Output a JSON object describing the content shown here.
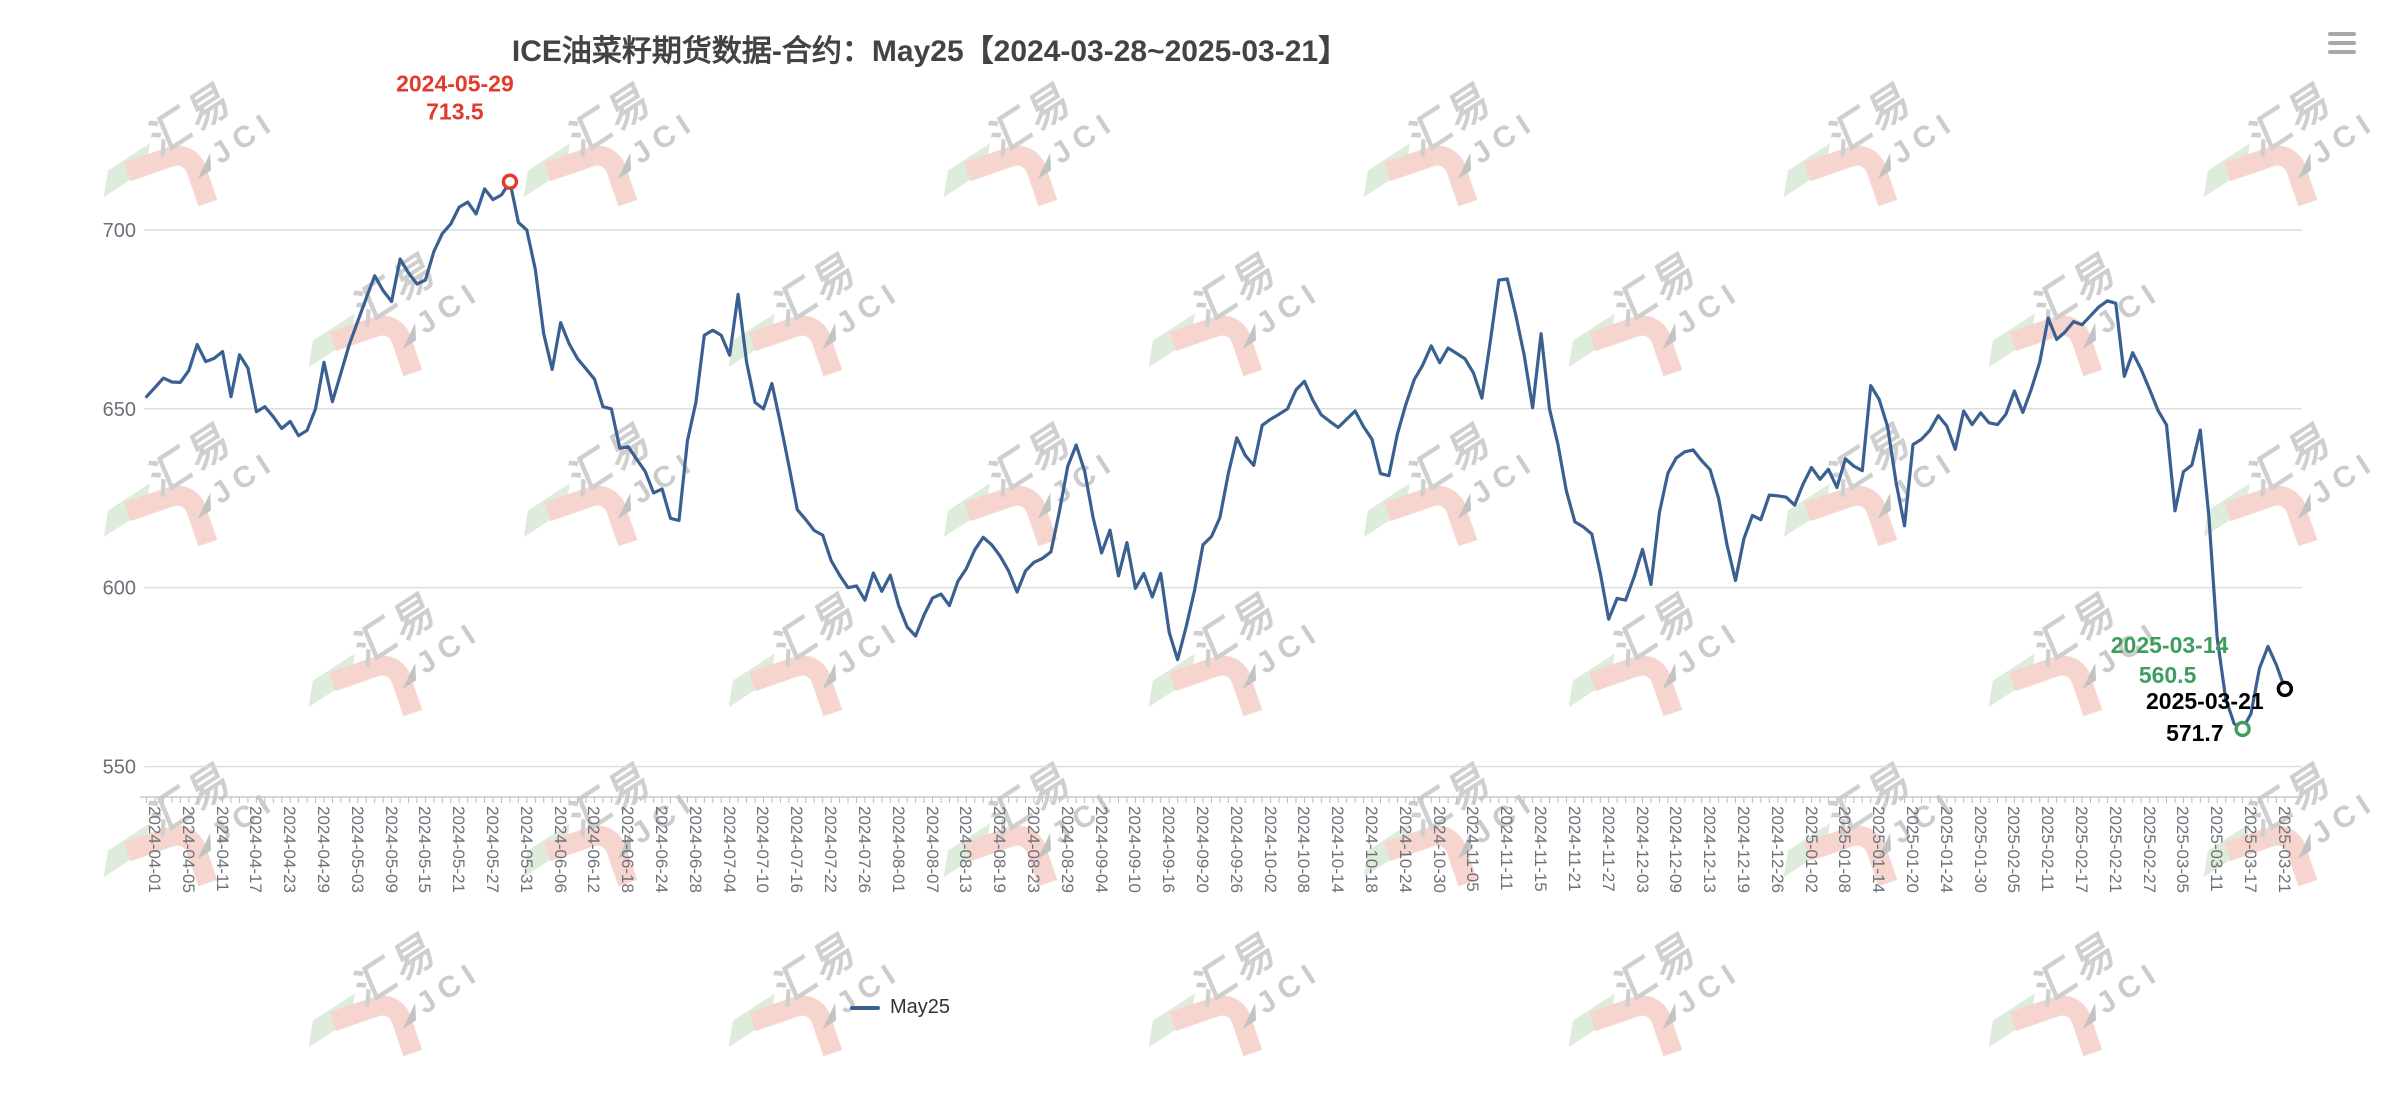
{
  "header": {
    "title": "ICE油菜籽期货数据-合约：May25【2024-03-28~2025-03-21】"
  },
  "toolbar": {
    "menu_icon": "hamburger-menu"
  },
  "legend": {
    "items": [
      {
        "label": "May25",
        "color": "#3a5f91"
      }
    ]
  },
  "watermark": {
    "text_cn": "汇易",
    "text_en": "JCI",
    "pink": "#f5cec7",
    "green": "#d9e9d5",
    "gray": "#c7c7c7"
  },
  "chart_data": {
    "type": "line",
    "title": "ICE油菜籽期货数据-合约：May25【2024-03-28~2025-03-21】",
    "xlabel": "",
    "ylabel": "",
    "ylim": [
      540,
      722
    ],
    "y_ticks": [
      550,
      600,
      650,
      700
    ],
    "grid": true,
    "legend_position": "bottom",
    "x_label_interval": 4,
    "x_label_start_index": 1,
    "line_color": "#3a5f91",
    "grid_color": "#dcdcdc",
    "axis_label_color": "#6e7079",
    "markers": [
      {
        "date": "2024-05-29",
        "value": 713.5,
        "color": "#e23a2b",
        "label_position": "above"
      },
      {
        "date": "2025-03-14",
        "value": 560.5,
        "color": "#3f9e5f",
        "label_position": "upper-left"
      },
      {
        "date": "2025-03-21",
        "value": 571.7,
        "color": "#000000",
        "label_position": "lower-left"
      }
    ],
    "series": [
      {
        "name": "May25",
        "color": "#3a5f91",
        "dates": [
          "2024-03-28",
          "2024-04-01",
          "2024-04-02",
          "2024-04-03",
          "2024-04-04",
          "2024-04-05",
          "2024-04-08",
          "2024-04-09",
          "2024-04-10",
          "2024-04-11",
          "2024-04-12",
          "2024-04-15",
          "2024-04-16",
          "2024-04-17",
          "2024-04-18",
          "2024-04-19",
          "2024-04-22",
          "2024-04-23",
          "2024-04-24",
          "2024-04-25",
          "2024-04-26",
          "2024-04-29",
          "2024-04-30",
          "2024-05-01",
          "2024-05-02",
          "2024-05-03",
          "2024-05-06",
          "2024-05-07",
          "2024-05-08",
          "2024-05-09",
          "2024-05-10",
          "2024-05-13",
          "2024-05-14",
          "2024-05-15",
          "2024-05-16",
          "2024-05-17",
          "2024-05-20",
          "2024-05-21",
          "2024-05-22",
          "2024-05-23",
          "2024-05-24",
          "2024-05-27",
          "2024-05-28",
          "2024-05-29",
          "2024-05-30",
          "2024-05-31",
          "2024-06-03",
          "2024-06-04",
          "2024-06-05",
          "2024-06-06",
          "2024-06-07",
          "2024-06-10",
          "2024-06-11",
          "2024-06-12",
          "2024-06-13",
          "2024-06-14",
          "2024-06-17",
          "2024-06-18",
          "2024-06-19",
          "2024-06-20",
          "2024-06-21",
          "2024-06-24",
          "2024-06-25",
          "2024-06-26",
          "2024-06-27",
          "2024-06-28",
          "2024-07-01",
          "2024-07-02",
          "2024-07-03",
          "2024-07-04",
          "2024-07-05",
          "2024-07-08",
          "2024-07-09",
          "2024-07-10",
          "2024-07-11",
          "2024-07-12",
          "2024-07-15",
          "2024-07-16",
          "2024-07-17",
          "2024-07-18",
          "2024-07-19",
          "2024-07-22",
          "2024-07-23",
          "2024-07-24",
          "2024-07-25",
          "2024-07-26",
          "2024-07-29",
          "2024-07-30",
          "2024-07-31",
          "2024-08-01",
          "2024-08-02",
          "2024-08-05",
          "2024-08-06",
          "2024-08-07",
          "2024-08-08",
          "2024-08-09",
          "2024-08-12",
          "2024-08-13",
          "2024-08-14",
          "2024-08-15",
          "2024-08-16",
          "2024-08-19",
          "2024-08-20",
          "2024-08-21",
          "2024-08-22",
          "2024-08-23",
          "2024-08-26",
          "2024-08-27",
          "2024-08-28",
          "2024-08-29",
          "2024-08-30",
          "2024-09-02",
          "2024-09-03",
          "2024-09-04",
          "2024-09-05",
          "2024-09-06",
          "2024-09-09",
          "2024-09-10",
          "2024-09-11",
          "2024-09-12",
          "2024-09-13",
          "2024-09-16",
          "2024-09-17",
          "2024-09-18",
          "2024-09-19",
          "2024-09-20",
          "2024-09-23",
          "2024-09-24",
          "2024-09-25",
          "2024-09-26",
          "2024-09-27",
          "2024-09-30",
          "2024-10-01",
          "2024-10-02",
          "2024-10-03",
          "2024-10-04",
          "2024-10-07",
          "2024-10-08",
          "2024-10-09",
          "2024-10-10",
          "2024-10-11",
          "2024-10-14",
          "2024-10-15",
          "2024-10-16",
          "2024-10-17",
          "2024-10-18",
          "2024-10-21",
          "2024-10-22",
          "2024-10-23",
          "2024-10-24",
          "2024-10-25",
          "2024-10-28",
          "2024-10-29",
          "2024-10-30",
          "2024-10-31",
          "2024-11-01",
          "2024-11-04",
          "2024-11-05",
          "2024-11-06",
          "2024-11-07",
          "2024-11-08",
          "2024-11-11",
          "2024-11-12",
          "2024-11-13",
          "2024-11-14",
          "2024-11-15",
          "2024-11-18",
          "2024-11-19",
          "2024-11-20",
          "2024-11-21",
          "2024-11-22",
          "2024-11-25",
          "2024-11-26",
          "2024-11-27",
          "2024-11-28",
          "2024-11-29",
          "2024-12-02",
          "2024-12-03",
          "2024-12-04",
          "2024-12-05",
          "2024-12-06",
          "2024-12-09",
          "2024-12-10",
          "2024-12-11",
          "2024-12-12",
          "2024-12-13",
          "2024-12-16",
          "2024-12-17",
          "2024-12-18",
          "2024-12-19",
          "2024-12-20",
          "2024-12-23",
          "2024-12-24",
          "2024-12-26",
          "2024-12-27",
          "2024-12-30",
          "2024-12-31",
          "2025-01-02",
          "2025-01-03",
          "2025-01-06",
          "2025-01-07",
          "2025-01-08",
          "2025-01-09",
          "2025-01-10",
          "2025-01-13",
          "2025-01-14",
          "2025-01-15",
          "2025-01-16",
          "2025-01-17",
          "2025-01-20",
          "2025-01-21",
          "2025-01-22",
          "2025-01-23",
          "2025-01-24",
          "2025-01-27",
          "2025-01-28",
          "2025-01-29",
          "2025-01-30",
          "2025-01-31",
          "2025-02-03",
          "2025-02-04",
          "2025-02-05",
          "2025-02-06",
          "2025-02-07",
          "2025-02-10",
          "2025-02-11",
          "2025-02-12",
          "2025-02-13",
          "2025-02-14",
          "2025-02-17",
          "2025-02-18",
          "2025-02-19",
          "2025-02-20",
          "2025-02-21",
          "2025-02-24",
          "2025-02-25",
          "2025-02-26",
          "2025-02-27",
          "2025-02-28",
          "2025-03-03",
          "2025-03-04",
          "2025-03-05",
          "2025-03-06",
          "2025-03-07",
          "2025-03-10",
          "2025-03-11",
          "2025-03-12",
          "2025-03-13",
          "2025-03-14",
          "2025-03-17",
          "2025-03-18",
          "2025-03-19",
          "2025-03-20",
          "2025-03-21"
        ],
        "values": [
          653.4,
          656,
          658.6,
          657.5,
          657.4,
          660.7,
          668,
          663.2,
          664.1,
          666,
          653.4,
          665.1,
          661.4,
          649.2,
          650.6,
          647.8,
          644.5,
          646.5,
          642.5,
          644,
          650,
          663,
          652,
          660,
          668,
          674.5,
          681,
          687.2,
          683,
          680,
          691.9,
          688,
          684.9,
          686,
          694,
          699,
          701.7,
          706.4,
          707.8,
          704.5,
          711.5,
          708.5,
          709.8,
          713.5,
          702.1,
          700,
          689,
          671,
          661,
          674.1,
          668.2,
          664,
          661.2,
          658.3,
          650.6,
          650,
          639,
          639.4,
          635.9,
          632.5,
          626.5,
          627.6,
          619.4,
          618.8,
          641,
          651.8,
          670.6,
          672,
          670.6,
          665,
          682,
          663,
          651.8,
          650,
          657.1,
          646,
          634.1,
          621.8,
          619,
          616,
          614.7,
          607.6,
          603.5,
          600,
          600.5,
          596.5,
          604.1,
          599,
          603.5,
          595,
          589,
          586.5,
          592.4,
          597.1,
          598.2,
          595,
          601.8,
          605.3,
          610.6,
          614.1,
          612,
          608.8,
          604.7,
          598.8,
          604.7,
          607.1,
          608.2,
          610,
          621.2,
          634,
          639.9,
          632.5,
          619.6,
          609.7,
          616.1,
          603.3,
          612.6,
          599.8,
          604,
          597.4,
          604,
          587.5,
          579.9,
          589,
          599.2,
          612,
          614.3,
          619.6,
          632,
          641.9,
          637,
          634.2,
          645.4,
          647.1,
          648.5,
          650,
          655.3,
          657.7,
          652.4,
          648.3,
          646.5,
          644.8,
          647.1,
          649.4,
          645,
          641.5,
          631.9,
          631.3,
          643,
          651.2,
          658.2,
          662.3,
          667.6,
          662.9,
          667,
          665.5,
          664,
          660,
          653,
          669,
          686,
          686.3,
          676.3,
          665,
          650.3,
          671,
          650,
          640,
          627,
          618.4,
          617,
          615,
          604.2,
          591.2,
          597,
          596.5,
          603,
          610.7,
          600.9,
          621,
          632,
          636.3,
          638,
          638.5,
          635.5,
          633,
          625,
          612,
          602,
          613.7,
          620.2,
          619,
          625.9,
          625.7,
          625.3,
          623.1,
          629,
          633.6,
          630.3,
          633.1,
          628,
          636,
          634,
          632.7,
          656.5,
          652.6,
          645,
          629.4,
          617.3,
          640,
          641.5,
          644,
          648.1,
          645.2,
          638.7,
          649.4,
          645.6,
          648.9,
          646.1,
          645.6,
          648.5,
          655,
          649,
          655.5,
          663,
          675.4,
          669.4,
          671.5,
          674.4,
          673.5,
          676,
          678.5,
          680.2,
          679.5,
          659.1,
          665.7,
          661,
          655.4,
          649.5,
          645.5,
          621.5,
          632.4,
          634.3,
          644.1,
          620.2,
          585.9,
          569,
          562,
          560.5,
          564.8,
          577.5,
          583.6,
          578.4,
          571.7
        ]
      }
    ]
  }
}
